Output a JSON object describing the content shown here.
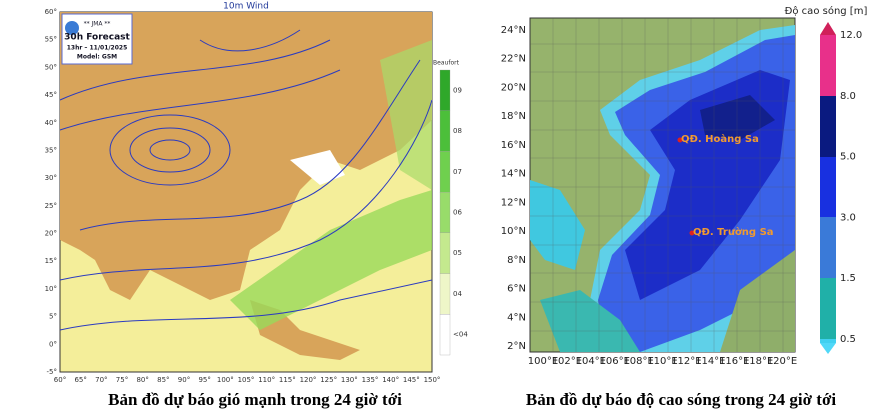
{
  "left_map": {
    "title": "10m Wind",
    "agency": "** JMA **",
    "forecast": "30h Forecast",
    "time": "13hr – 11/01/2025",
    "model": "Model: GSM",
    "legend_title": "Beaufort",
    "legend_labels": [
      "09",
      "08",
      "07",
      "06",
      "05",
      "04",
      "<04"
    ],
    "lat_labels": [
      "60°",
      "55°",
      "50°",
      "45°",
      "40°",
      "35°",
      "30°",
      "25°",
      "20°",
      "15°",
      "10°",
      "5°",
      "0°",
      "-5°"
    ],
    "lon_labels": [
      "60°",
      "65°",
      "70°",
      "75°",
      "80°",
      "85°",
      "90°",
      "95°",
      "100°",
      "105°",
      "110°",
      "115°",
      "120°",
      "125°",
      "130°",
      "135°",
      "140°",
      "145°",
      "150°"
    ],
    "caption": "Bản đồ dự báo gió mạnh trong 24 giờ tới"
  },
  "right_map": {
    "legend_title": "Độ cao sóng [m]",
    "legend_labels": [
      "12.0",
      "8.0",
      "5.0",
      "3.0",
      "1.5",
      "0.5"
    ],
    "lat_labels": [
      "24°N",
      "22°N",
      "20°N",
      "18°N",
      "16°N",
      "14°N",
      "12°N",
      "10°N",
      "8°N",
      "6°N",
      "4°N",
      "2°N"
    ],
    "lon_labels": [
      "100°E",
      "102°E",
      "104°E",
      "106°E",
      "108°E",
      "110°E",
      "112°E",
      "114°E",
      "116°E",
      "118°E",
      "120°E"
    ],
    "places": [
      "QĐ. Hoàng Sa",
      "QĐ. Trường Sa"
    ],
    "caption": "Bản đồ dự báo độ cao sóng trong 24 giờ tới"
  }
}
